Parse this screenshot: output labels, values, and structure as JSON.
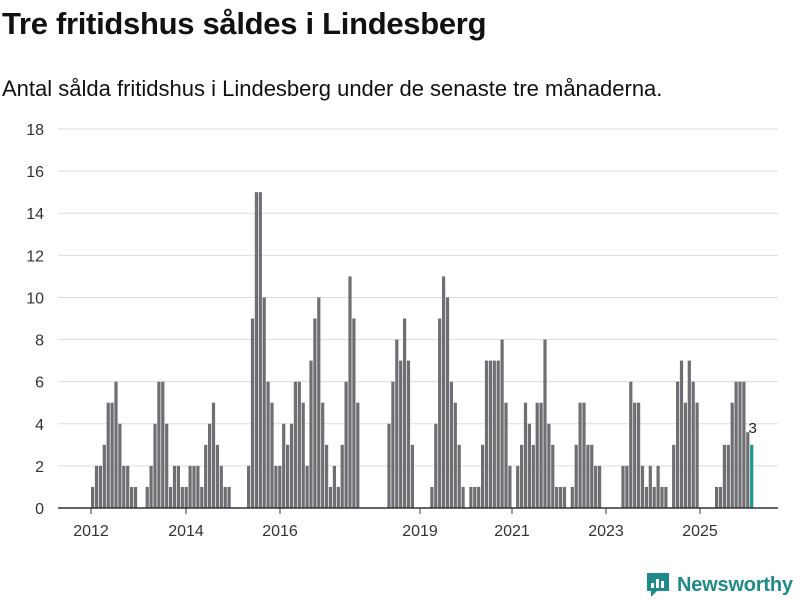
{
  "title": "Tre fritidshus såldes i Lindesberg",
  "subtitle": "Antal sålda fritidshus i Lindesberg under de senaste tre månaderna.",
  "brand": {
    "name": "Newsworthy"
  },
  "colors": {
    "bar": "#6e6e73",
    "highlight": "#1a9a8e",
    "grid": "#dddddd",
    "axis": "#333333",
    "brand": "#1f8a8a"
  },
  "chart_data": {
    "type": "bar",
    "title": "Tre fritidshus såldes i Lindesberg",
    "xlabel": "",
    "ylabel": "",
    "ylim": [
      0,
      18
    ],
    "yticks": [
      0,
      2,
      4,
      6,
      8,
      10,
      12,
      14,
      16,
      18
    ],
    "xticks": [
      "2012",
      "2014",
      "2016",
      "2019",
      "2021",
      "2023",
      "2025"
    ],
    "series": [
      {
        "name": "Antal sålda fritidshus",
        "values": [
          1,
          2,
          2,
          3,
          5,
          5,
          6,
          4,
          2,
          2,
          1,
          1,
          null,
          null,
          1,
          2,
          4,
          6,
          6,
          4,
          1,
          2,
          2,
          1,
          1,
          2,
          2,
          2,
          1,
          3,
          4,
          5,
          3,
          2,
          1,
          1,
          null,
          null,
          null,
          null,
          2,
          9,
          15,
          15,
          10,
          6,
          5,
          2,
          2,
          4,
          3,
          4,
          6,
          6,
          5,
          2,
          7,
          9,
          10,
          5,
          3,
          1,
          2,
          1,
          3,
          6,
          11,
          9,
          5,
          null,
          null,
          null,
          null,
          null,
          null,
          null,
          4,
          6,
          8,
          7,
          9,
          7,
          3,
          null,
          null,
          null,
          null,
          1,
          4,
          9,
          11,
          10,
          6,
          5,
          3,
          1,
          null,
          1,
          1,
          1,
          3,
          7,
          7,
          7,
          7,
          8,
          5,
          2,
          null,
          2,
          3,
          5,
          4,
          3,
          5,
          5,
          8,
          4,
          3,
          1,
          1,
          1,
          null,
          1,
          3,
          5,
          5,
          3,
          3,
          2,
          2,
          null,
          null,
          null,
          null,
          null,
          2,
          2,
          6,
          5,
          5,
          2,
          1,
          2,
          1,
          2,
          1,
          1,
          null,
          3,
          6,
          7,
          5,
          7,
          6,
          5,
          null,
          null,
          null,
          null,
          1,
          1,
          3,
          3,
          5,
          6,
          6,
          6,
          3.6,
          3
        ]
      }
    ],
    "highlight_last": true,
    "annotations": [
      {
        "label": "3",
        "target": "last"
      }
    ]
  }
}
